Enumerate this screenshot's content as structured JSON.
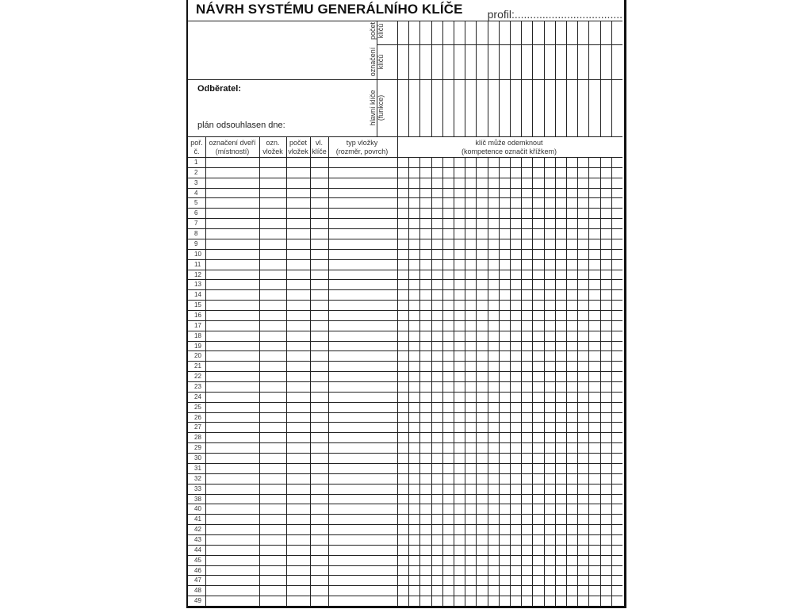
{
  "title": "NÁVRH SYSTÉMU GENERÁLNÍHO KLÍČE",
  "profile": "profil:...................................",
  "customer_label": "Odběratel:",
  "plan_label": "plán odsouhlasen dne:",
  "key_rows": [
    {
      "label": "počet klíčů"
    },
    {
      "label": "označení klíčů"
    },
    {
      "label": "hlavní klíče (funkce)"
    }
  ],
  "columns": {
    "no": [
      "poř.",
      "č."
    ],
    "door": [
      "označení dveří",
      "(místností)"
    ],
    "ozn": [
      "ozn.",
      "vložek"
    ],
    "count": [
      "počet",
      "vložek"
    ],
    "vl": [
      "vl.",
      "klíče"
    ],
    "type": [
      "typ vložky",
      "(rozměr, povrch)"
    ],
    "key": [
      "klíč může odemknout",
      "(kompetence označit křížkem)"
    ]
  },
  "key_column_count": 20,
  "row_numbers": [
    "1",
    "2",
    "3",
    "4",
    "5",
    "6",
    "7",
    "8",
    "9",
    "10",
    "11",
    "12",
    "13",
    "14",
    "15",
    "16",
    "17",
    "18",
    "19",
    "20",
    "21",
    "22",
    "23",
    "24",
    "25",
    "26",
    "27",
    "28",
    "29",
    "30",
    "31",
    "32",
    "33",
    "38",
    "40",
    "41",
    "42",
    "43",
    "44",
    "45",
    "46",
    "47",
    "48",
    "49"
  ]
}
